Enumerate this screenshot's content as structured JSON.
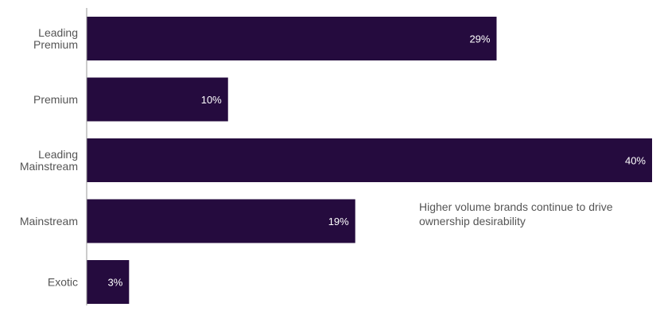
{
  "chart_data": {
    "type": "bar",
    "orientation": "horizontal",
    "categories": [
      "Leading Premium",
      "Premium",
      "Leading Mainstream",
      "Mainstream",
      "Exotic"
    ],
    "values": [
      29,
      10,
      40,
      19,
      3
    ],
    "value_labels": [
      "29%",
      "10%",
      "40%",
      "19%",
      "3%"
    ],
    "title": "",
    "xlabel": "",
    "ylabel": "",
    "xlim": [
      0,
      40
    ],
    "grid": false,
    "bar_color": "#250B3E",
    "annotation": "Higher volume brands continue to drive ownership desirability"
  }
}
